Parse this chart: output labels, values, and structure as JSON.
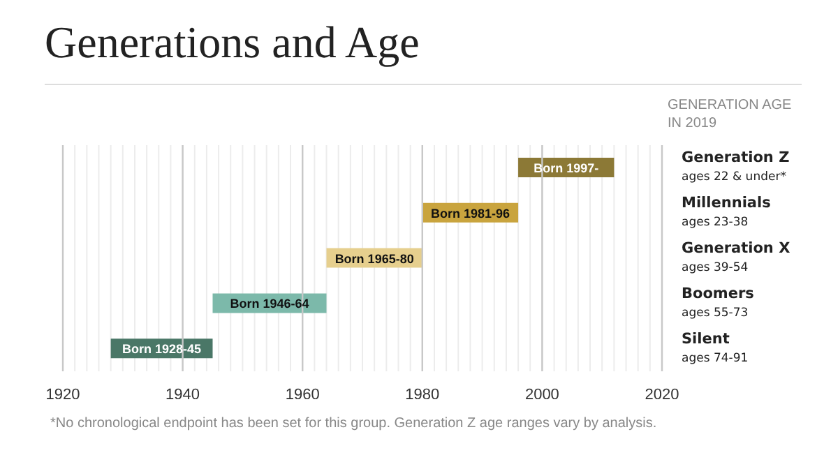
{
  "chart_data": {
    "type": "bar",
    "orientation": "horizontal",
    "title": "Generations and Age",
    "categories": [
      "Generation Z\nages 22 & under*",
      "Millennials\nages 23-38",
      "Generation X\nages 39-54",
      "Boomers\nages 55-73",
      "Silent\nages 74-91"
    ],
    "base": [
      1996,
      1980,
      1964,
      1945,
      1928
    ],
    "values": [
      16,
      16,
      16,
      19,
      17
    ],
    "colors": [
      "#8c7936",
      "#c9a43e",
      "#e6cf8e",
      "#7cb9aa",
      "#4a7767"
    ],
    "value_labels": [
      "Born 1997-",
      "Born 1981-96",
      "Born 1965-80",
      "Born 1946-64",
      "Born 1928-45"
    ],
    "xlim": [
      1920,
      2020
    ],
    "xticks": [
      1920,
      {
        "value": 1922,
        "label": null
      },
      {
        "value": 1924,
        "label": null
      },
      {
        "value": 1926,
        "label": null
      },
      {
        "value": 1928,
        "label": null
      },
      {
        "value": 1930,
        "label": null
      },
      {
        "value": 1932,
        "label": null
      },
      {
        "value": 1934,
        "label": null
      },
      {
        "value": 1936,
        "label": null
      },
      {
        "value": 1938,
        "label": null
      },
      1940,
      {
        "value": 1942,
        "label": null
      },
      {
        "value": 1944,
        "label": null
      },
      {
        "value": 1946,
        "label": null
      },
      {
        "value": 1948,
        "label": null
      },
      {
        "value": 1950,
        "label": null
      },
      {
        "value": 1952,
        "label": null
      },
      {
        "value": 1954,
        "label": null
      },
      {
        "value": 1956,
        "label": null
      },
      {
        "value": 1958,
        "label": null
      },
      1960,
      {
        "value": 1962,
        "label": null
      },
      {
        "value": 1964,
        "label": null
      },
      {
        "value": 1966,
        "label": null
      },
      {
        "value": 1968,
        "label": null
      },
      {
        "value": 1970,
        "label": null
      },
      {
        "value": 1972,
        "label": null
      },
      {
        "value": 1974,
        "label": null
      },
      {
        "value": 1976,
        "label": null
      },
      {
        "value": 1978,
        "label": null
      },
      1980,
      {
        "value": 1982,
        "label": null
      },
      {
        "value": 1984,
        "label": null
      },
      {
        "value": 1986,
        "label": null
      },
      {
        "value": 1988,
        "label": null
      },
      {
        "value": 1990,
        "label": null
      },
      {
        "value": 1992,
        "label": null
      },
      {
        "value": 1994,
        "label": null
      },
      {
        "value": 1996,
        "label": null
      },
      {
        "value": 1998,
        "label": null
      },
      2000,
      {
        "value": 2002,
        "label": null
      },
      {
        "value": 2004,
        "label": null
      },
      {
        "value": 2006,
        "label": null
      },
      {
        "value": 2008,
        "label": null
      },
      {
        "value": 2010,
        "label": null
      },
      {
        "value": 2012,
        "label": null
      },
      {
        "value": 2014,
        "label": null
      },
      {
        "value": 2016,
        "label": null
      },
      {
        "value": 2018,
        "label": null
      },
      2020
    ],
    "grid": "x",
    "annotations": [
      "GENERATION AGE IN 2019",
      "*No chronological endpoint has been set for this group. Generation Z age ranges vary by analysis."
    ]
  }
}
